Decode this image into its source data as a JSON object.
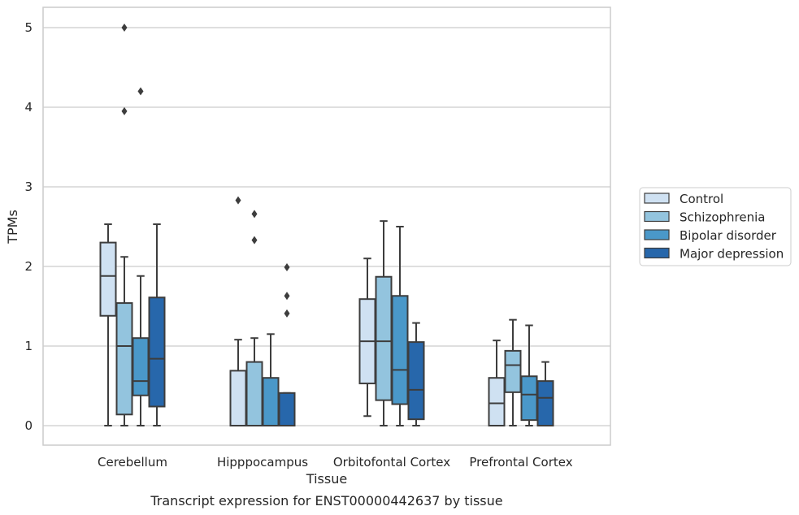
{
  "chart_data": {
    "type": "box",
    "title": "Transcript expression for ENST00000442637 by tissue",
    "xlabel": "Tissue",
    "ylabel": "TPMs",
    "ylim": [
      -0.24,
      5.25
    ],
    "yticks": [
      0,
      1,
      2,
      3,
      4,
      5
    ],
    "grid": "horizontal",
    "legend_position": "right",
    "categories": [
      "Cerebellum",
      "Hipppocampus",
      "Orbitofontal Cortex",
      "Prefrontal Cortex"
    ],
    "series": [
      {
        "name": "Control",
        "color": "#cfe1f2",
        "boxes": [
          {
            "whisker_low": 0,
            "q1": 1.38,
            "median": 1.88,
            "q3": 2.3,
            "whisker_high": 2.53,
            "outliers": []
          },
          {
            "whisker_low": 0,
            "q1": 0,
            "median": 0,
            "q3": 0.69,
            "whisker_high": 1.08,
            "outliers": [
              2.83
            ]
          },
          {
            "whisker_low": 0.12,
            "q1": 0.53,
            "median": 1.06,
            "q3": 1.59,
            "whisker_high": 2.1,
            "outliers": []
          },
          {
            "whisker_low": 0,
            "q1": 0,
            "median": 0.28,
            "q3": 0.6,
            "whisker_high": 1.07,
            "outliers": []
          }
        ]
      },
      {
        "name": "Schizophrenia",
        "color": "#93c4de",
        "boxes": [
          {
            "whisker_low": 0,
            "q1": 0.14,
            "median": 1.0,
            "q3": 1.54,
            "whisker_high": 2.12,
            "outliers": [
              3.95,
              5.0
            ]
          },
          {
            "whisker_low": 0,
            "q1": 0,
            "median": 0,
            "q3": 0.8,
            "whisker_high": 1.1,
            "outliers": [
              2.33,
              2.66
            ]
          },
          {
            "whisker_low": 0,
            "q1": 0.32,
            "median": 1.06,
            "q3": 1.87,
            "whisker_high": 2.57,
            "outliers": []
          },
          {
            "whisker_low": 0,
            "q1": 0.42,
            "median": 0.76,
            "q3": 0.94,
            "whisker_high": 1.33,
            "outliers": []
          }
        ]
      },
      {
        "name": "Bipolar disorder",
        "color": "#4a98c9",
        "boxes": [
          {
            "whisker_low": 0,
            "q1": 0.38,
            "median": 0.56,
            "q3": 1.1,
            "whisker_high": 1.88,
            "outliers": [
              4.2
            ]
          },
          {
            "whisker_low": 0,
            "q1": 0,
            "median": 0,
            "q3": 0.6,
            "whisker_high": 1.15,
            "outliers": []
          },
          {
            "whisker_low": 0,
            "q1": 0.27,
            "median": 0.7,
            "q3": 1.63,
            "whisker_high": 2.5,
            "outliers": []
          },
          {
            "whisker_low": 0,
            "q1": 0.07,
            "median": 0.39,
            "q3": 0.62,
            "whisker_high": 1.26,
            "outliers": []
          }
        ]
      },
      {
        "name": "Major depression",
        "color": "#2767ab",
        "boxes": [
          {
            "whisker_low": 0,
            "q1": 0.24,
            "median": 0.84,
            "q3": 1.61,
            "whisker_high": 2.53,
            "outliers": []
          },
          {
            "whisker_low": 0,
            "q1": 0,
            "median": 0,
            "q3": 0.41,
            "whisker_high": 0.41,
            "outliers": [
              1.41,
              1.63,
              1.99
            ]
          },
          {
            "whisker_low": 0,
            "q1": 0.08,
            "median": 0.45,
            "q3": 1.05,
            "whisker_high": 1.29,
            "outliers": []
          },
          {
            "whisker_low": 0,
            "q1": 0,
            "median": 0.35,
            "q3": 0.56,
            "whisker_high": 0.8,
            "outliers": []
          }
        ]
      }
    ]
  }
}
